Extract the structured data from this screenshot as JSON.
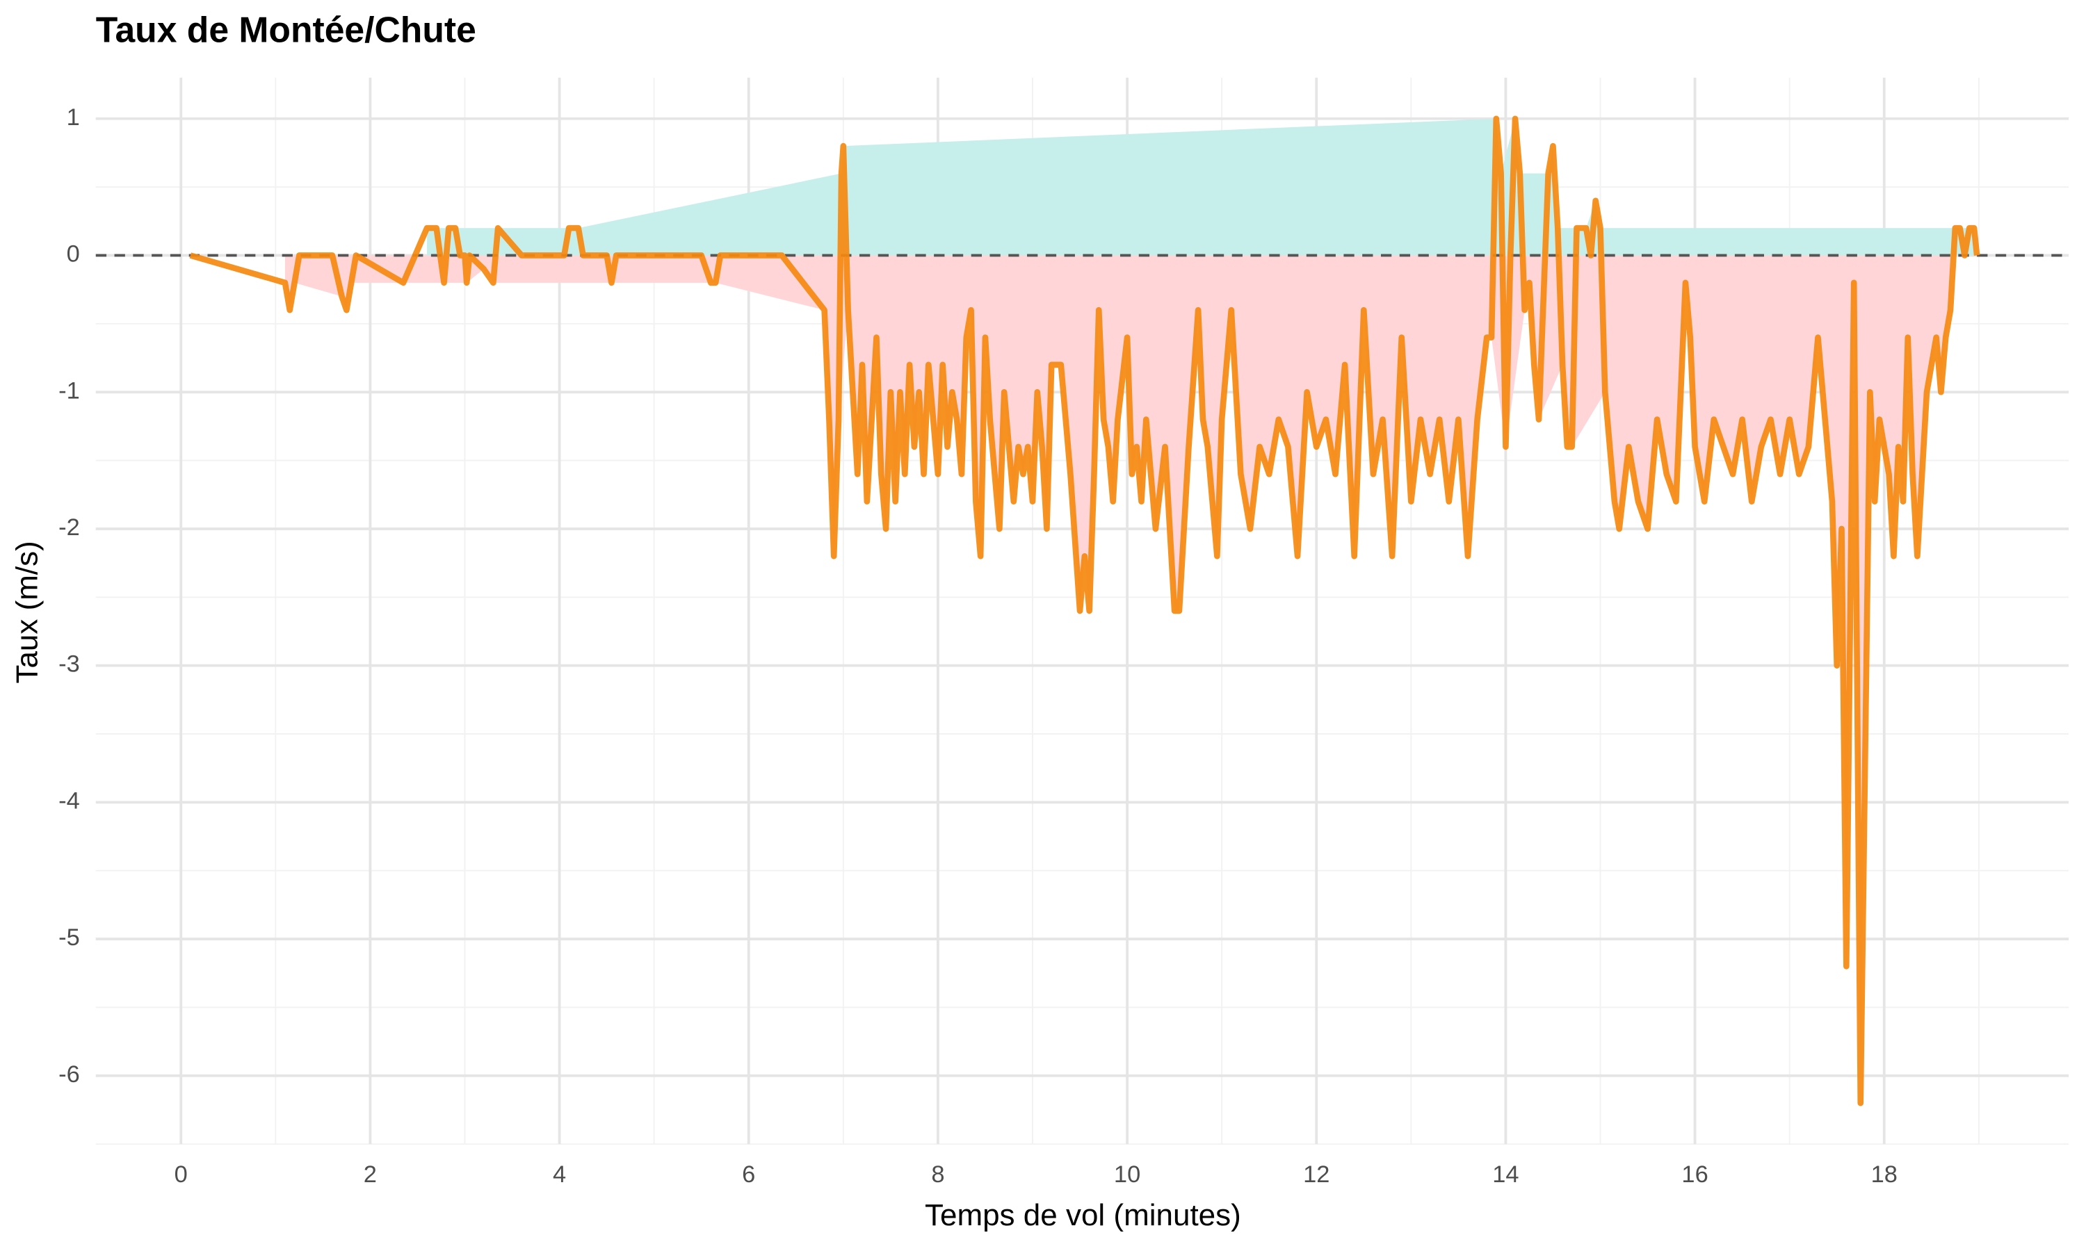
{
  "chart_data": {
    "type": "line",
    "title": "Taux de Montée/Chute",
    "x_label": "Temps de vol (minutes)",
    "y_label": "Taux (m/s)",
    "color": "#f5890f",
    "positive_color": "#c6efec",
    "negative_color": "#ffd5d8",
    "reference_line": 0,
    "grid": true,
    "xlim": [
      -0.9,
      19.95
    ],
    "ylim": [
      -6.5,
      1.3
    ],
    "xticks": [
      0,
      2,
      4,
      6,
      8,
      10,
      12,
      14,
      16,
      18
    ],
    "yticks": [
      1,
      0,
      -1,
      -2,
      -3,
      -4,
      -5,
      -6
    ],
    "x": [
      0.1,
      1.1,
      1.15,
      1.2,
      1.25,
      1.6,
      1.7,
      1.75,
      1.8,
      1.85,
      2.35,
      2.6,
      2.7,
      2.78,
      2.83,
      2.9,
      2.95,
      3.0,
      3.02,
      3.05,
      3.2,
      3.3,
      3.35,
      3.6,
      4.05,
      4.1,
      4.2,
      4.25,
      4.5,
      4.55,
      4.6,
      5.5,
      5.6,
      5.65,
      5.7,
      6.35,
      6.8,
      6.85,
      6.9,
      6.95,
      6.98,
      7.0,
      7.05,
      7.1,
      7.15,
      7.2,
      7.25,
      7.3,
      7.35,
      7.4,
      7.45,
      7.5,
      7.55,
      7.6,
      7.65,
      7.7,
      7.75,
      7.8,
      7.85,
      7.9,
      7.95,
      8.0,
      8.05,
      8.1,
      8.15,
      8.2,
      8.25,
      8.3,
      8.35,
      8.4,
      8.45,
      8.5,
      8.55,
      8.6,
      8.65,
      8.7,
      8.75,
      8.8,
      8.85,
      8.9,
      8.95,
      9.0,
      9.05,
      9.1,
      9.15,
      9.2,
      9.3,
      9.4,
      9.5,
      9.55,
      9.6,
      9.65,
      9.7,
      9.75,
      9.8,
      9.85,
      9.9,
      10.0,
      10.05,
      10.1,
      10.15,
      10.2,
      10.3,
      10.4,
      10.5,
      10.55,
      10.65,
      10.75,
      10.8,
      10.85,
      10.9,
      10.95,
      11.0,
      11.1,
      11.2,
      11.3,
      11.4,
      11.5,
      11.6,
      11.7,
      11.8,
      11.9,
      12.0,
      12.1,
      12.2,
      12.3,
      12.4,
      12.5,
      12.6,
      12.7,
      12.8,
      12.9,
      13.0,
      13.1,
      13.2,
      13.3,
      13.4,
      13.5,
      13.6,
      13.7,
      13.8,
      13.85,
      13.9,
      13.95,
      14.0,
      14.05,
      14.1,
      14.15,
      14.2,
      14.25,
      14.3,
      14.35,
      14.45,
      14.5,
      14.55,
      14.6,
      14.65,
      14.7,
      14.75,
      14.85,
      14.9,
      14.95,
      15.0,
      15.05,
      15.15,
      15.2,
      15.3,
      15.4,
      15.5,
      15.6,
      15.7,
      15.8,
      15.9,
      15.95,
      16.0,
      16.1,
      16.2,
      16.3,
      16.4,
      16.5,
      16.6,
      16.7,
      16.8,
      16.9,
      17.0,
      17.1,
      17.2,
      17.3,
      17.4,
      17.45,
      17.5,
      17.55,
      17.6,
      17.68,
      17.75,
      17.85,
      17.9,
      17.95,
      18.05,
      18.1,
      18.15,
      18.2,
      18.25,
      18.3,
      18.35,
      18.45,
      18.55,
      18.6,
      18.65,
      18.7,
      18.75,
      18.8,
      18.85,
      18.9,
      18.95,
      18.98
    ],
    "values": [
      0,
      -0.2,
      -0.4,
      -0.2,
      0,
      0,
      -0.3,
      -0.4,
      -0.2,
      0,
      -0.2,
      0.2,
      0.2,
      -0.2,
      0.2,
      0.2,
      0,
      0,
      -0.2,
      0,
      -0.1,
      -0.2,
      0.2,
      0,
      0,
      0.2,
      0.2,
      0,
      0,
      -0.2,
      0,
      0,
      -0.2,
      -0.2,
      0,
      0,
      -0.4,
      -1.2,
      -2.2,
      -1.2,
      0.6,
      0.8,
      -0.4,
      -1.0,
      -1.6,
      -0.8,
      -1.8,
      -1.2,
      -0.6,
      -1.6,
      -2.0,
      -1.0,
      -1.8,
      -1.0,
      -1.6,
      -0.8,
      -1.4,
      -1.0,
      -1.6,
      -0.8,
      -1.2,
      -1.6,
      -0.8,
      -1.4,
      -1.0,
      -1.2,
      -1.6,
      -0.6,
      -0.4,
      -1.8,
      -2.2,
      -0.6,
      -1.2,
      -1.6,
      -2.0,
      -1.0,
      -1.4,
      -1.8,
      -1.4,
      -1.6,
      -1.4,
      -1.8,
      -1.0,
      -1.4,
      -2.0,
      -0.8,
      -0.8,
      -1.6,
      -2.6,
      -2.2,
      -2.6,
      -1.6,
      -0.4,
      -1.2,
      -1.4,
      -1.8,
      -1.2,
      -0.6,
      -1.6,
      -1.4,
      -1.8,
      -1.2,
      -2.0,
      -1.4,
      -2.6,
      -2.6,
      -1.4,
      -0.4,
      -1.2,
      -1.4,
      -1.8,
      -2.2,
      -1.2,
      -0.4,
      -1.6,
      -2.0,
      -1.4,
      -1.6,
      -1.2,
      -1.4,
      -2.2,
      -1.0,
      -1.4,
      -1.2,
      -1.6,
      -0.8,
      -2.2,
      -0.4,
      -1.6,
      -1.2,
      -2.2,
      -0.6,
      -1.8,
      -1.2,
      -1.6,
      -1.2,
      -1.8,
      -1.2,
      -2.2,
      -1.2,
      -0.6,
      -0.6,
      1,
      0.6,
      -1.4,
      0,
      1,
      0.6,
      -0.4,
      -0.2,
      -0.8,
      -1.2,
      0.6,
      0.8,
      0.2,
      -0.8,
      -1.4,
      -1.4,
      0.2,
      0.2,
      0,
      0.4,
      0.2,
      -1.0,
      -1.8,
      -2.0,
      -1.4,
      -1.8,
      -2.0,
      -1.2,
      -1.6,
      -1.8,
      -0.2,
      -0.6,
      -1.4,
      -1.8,
      -1.2,
      -1.4,
      -1.6,
      -1.2,
      -1.8,
      -1.4,
      -1.2,
      -1.6,
      -1.2,
      -1.6,
      -1.4,
      -0.6,
      -1.4,
      -1.8,
      -3.0,
      -2.0,
      -5.2,
      -0.2,
      -6.2,
      -1.0,
      -1.8,
      -1.2,
      -1.6,
      -2.2,
      -1.4,
      -1.8,
      -0.6,
      -1.6,
      -2.2,
      -1.0,
      -0.6,
      -1.0,
      -0.6,
      -0.4,
      0.2,
      0.2,
      0,
      0.2,
      0.2,
      0
    ]
  }
}
